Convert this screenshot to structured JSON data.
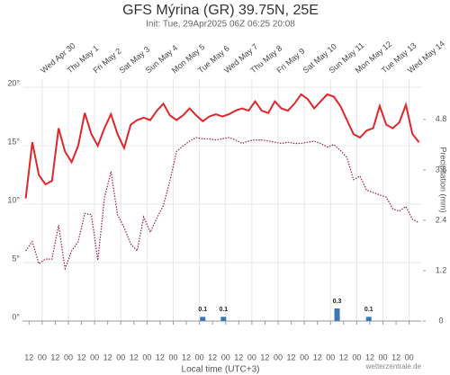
{
  "chart_data": {
    "type": "line",
    "title": "GFS Mýrina (GR) 39.75N, 25E",
    "subtitle": "Init: Tue, 29Apr2025 06Z 06:25 20:08",
    "x_label": "Local time (UTC+3)",
    "y2_label": "Precipitation (mm)",
    "credit": "wetterzentrale.de",
    "grid": true,
    "xlim": [
      -6,
      359
    ],
    "ylim": [
      0,
      20.7
    ],
    "y2lim": [
      0,
      5.76
    ],
    "yticks": [
      {
        "value": 0,
        "label": "0°"
      },
      {
        "value": 5,
        "label": "5°"
      },
      {
        "value": 10,
        "label": "10°"
      },
      {
        "value": 15,
        "label": "15°"
      },
      {
        "value": 20,
        "label": "20°"
      }
    ],
    "y2ticks": [
      0,
      1.2,
      2.4,
      3.6,
      4.8
    ],
    "xticks": [
      {
        "value": 0,
        "label": "12"
      },
      {
        "value": 12,
        "label": "00"
      },
      {
        "value": 24,
        "label": "12"
      },
      {
        "value": 36,
        "label": "00"
      },
      {
        "value": 48,
        "label": "12"
      },
      {
        "value": 60,
        "label": "00"
      },
      {
        "value": 72,
        "label": "12"
      },
      {
        "value": 84,
        "label": "00"
      },
      {
        "value": 96,
        "label": "12"
      },
      {
        "value": 108,
        "label": "00"
      },
      {
        "value": 120,
        "label": "12"
      },
      {
        "value": 132,
        "label": "00"
      },
      {
        "value": 144,
        "label": "12"
      },
      {
        "value": 156,
        "label": "00"
      },
      {
        "value": 168,
        "label": "12"
      },
      {
        "value": 180,
        "label": "00"
      },
      {
        "value": 192,
        "label": "12"
      },
      {
        "value": 204,
        "label": "00"
      },
      {
        "value": 216,
        "label": "12"
      },
      {
        "value": 228,
        "label": "00"
      },
      {
        "value": 240,
        "label": "12"
      },
      {
        "value": 252,
        "label": "00"
      },
      {
        "value": 264,
        "label": "12"
      },
      {
        "value": 276,
        "label": "00"
      },
      {
        "value": 288,
        "label": "12"
      },
      {
        "value": 300,
        "label": "00"
      },
      {
        "value": 312,
        "label": "12"
      },
      {
        "value": 324,
        "label": "00"
      },
      {
        "value": 336,
        "label": "12"
      },
      {
        "value": 348,
        "label": "00"
      }
    ],
    "day_ticks": [
      {
        "value": 12,
        "label": "Wed Apr 30"
      },
      {
        "value": 36,
        "label": "Thu May 1"
      },
      {
        "value": 60,
        "label": "Fri May 2"
      },
      {
        "value": 84,
        "label": "Sat May 3"
      },
      {
        "value": 108,
        "label": "Sun May 4"
      },
      {
        "value": 132,
        "label": "Mon May 5"
      },
      {
        "value": 156,
        "label": "Tue May 6"
      },
      {
        "value": 180,
        "label": "Wed May 7"
      },
      {
        "value": 204,
        "label": "Thu May 8"
      },
      {
        "value": 228,
        "label": "Fri May 9"
      },
      {
        "value": 252,
        "label": "Sat May 10"
      },
      {
        "value": 276,
        "label": "Sun May 11"
      },
      {
        "value": 300,
        "label": "Mon May 12"
      },
      {
        "value": 324,
        "label": "Tue May 13"
      },
      {
        "value": 348,
        "label": "Wed May 14"
      }
    ],
    "x": [
      -3,
      3,
      9,
      15,
      21,
      27,
      33,
      39,
      45,
      51,
      57,
      63,
      69,
      75,
      81,
      87,
      93,
      99,
      105,
      111,
      117,
      123,
      129,
      135,
      141,
      147,
      153,
      159,
      165,
      171,
      177,
      183,
      189,
      195,
      201,
      207,
      213,
      219,
      225,
      231,
      237,
      243,
      249,
      255,
      261,
      267,
      273,
      279,
      285,
      291,
      297,
      303,
      309,
      315,
      321,
      327,
      333,
      339,
      345,
      351,
      357
    ],
    "series": [
      {
        "color": "#e0262b",
        "style": "solid",
        "values": [
          10.5,
          15.3,
          12.5,
          11.7,
          12.0,
          16.5,
          14.5,
          13.6,
          15.0,
          17.8,
          16.0,
          15.0,
          16.5,
          17.7,
          16.0,
          14.8,
          16.8,
          17.2,
          17.4,
          17.2,
          18.0,
          18.6,
          17.6,
          17.2,
          17.6,
          18.2,
          17.6,
          17.1,
          17.5,
          17.7,
          17.5,
          17.7,
          18.0,
          18.2,
          18.0,
          18.8,
          18.0,
          17.8,
          18.8,
          18.2,
          18.0,
          18.6,
          19.4,
          19.0,
          18.2,
          18.8,
          19.4,
          19.2,
          18.4,
          17.2,
          16.0,
          15.7,
          16.3,
          16.5,
          18.4,
          16.8,
          16.5,
          17.0,
          18.5,
          16.0,
          15.3
        ]
      },
      {
        "color": "#9b1c3c",
        "style": "dotted",
        "values": [
          6.0,
          6.8,
          4.9,
          5.3,
          5.3,
          8.2,
          4.5,
          6.0,
          6.8,
          9.2,
          9.1,
          5.2,
          10.5,
          12.8,
          9.1,
          8.0,
          6.6,
          6.0,
          8.9,
          7.6,
          8.8,
          9.9,
          12.0,
          14.5,
          15.0,
          15.4,
          15.7,
          15.6,
          15.6,
          15.5,
          15.6,
          15.7,
          15.5,
          15.2,
          15.4,
          15.5,
          15.5,
          15.4,
          15.3,
          15.2,
          15.3,
          15.2,
          15.2,
          15.3,
          15.4,
          15.2,
          14.9,
          15.1,
          14.6,
          14.0,
          12.1,
          12.4,
          11.2,
          11.0,
          10.8,
          10.6,
          9.6,
          9.4,
          9.8,
          8.7,
          8.4
        ]
      }
    ],
    "precipitation": {
      "axis": "y2",
      "color": "#3a78b5",
      "x": [
        159,
        178,
        282,
        311
      ],
      "values": [
        0.1,
        0.1,
        0.3,
        0.1
      ]
    }
  }
}
